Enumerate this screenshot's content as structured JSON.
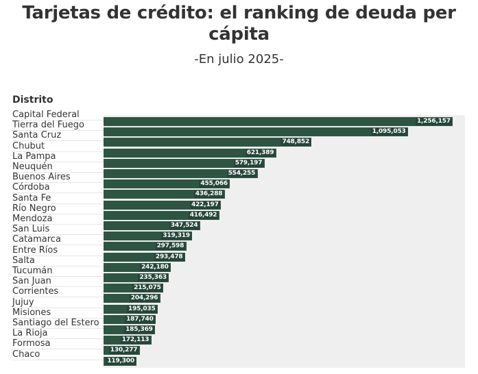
{
  "header": {
    "title": "Tarjetas de crédito: el ranking de deuda per cápita",
    "subtitle": "-En julio 2025-",
    "column_header": "Distrito"
  },
  "colors": {
    "bar": "#2d5542",
    "label_box": "#26463a",
    "panel": "#efefef"
  },
  "chart_data": {
    "type": "bar",
    "orientation": "horizontal",
    "title": "Tarjetas de crédito: el ranking de deuda per cápita",
    "subtitle": "-En julio 2025-",
    "xlabel": "",
    "ylabel": "Distrito",
    "xlim": [
      0,
      1256157
    ],
    "grid": false,
    "legend": "none",
    "categories": [
      "Capital Federal",
      "Tierra del Fuego",
      "Santa Cruz",
      "Chubut",
      "La Pampa",
      "Neuquén",
      "Buenos Aires",
      "Córdoba",
      "Santa Fe",
      "Río Negro",
      "Mendoza",
      "San Luis",
      "Catamarca",
      "Entre Ríos",
      "Salta",
      "Tucumán",
      "San Juan",
      "Corrientes",
      "Jujuy",
      "Misiones",
      "Santiago del Estero",
      "La Rioja",
      "Formosa",
      "Chaco"
    ],
    "values": [
      1256157,
      1095053,
      748852,
      621389,
      579197,
      554255,
      455066,
      436288,
      422197,
      416492,
      347524,
      319319,
      297598,
      293478,
      242180,
      235363,
      215075,
      204296,
      195035,
      187740,
      185369,
      172113,
      130277,
      119300
    ],
    "value_labels": [
      "1,256,157",
      "1,095,053",
      "748,852",
      "621,389",
      "579,197",
      "554,255",
      "455,066",
      "436,288",
      "422,197",
      "416,492",
      "347,524",
      "319,319",
      "297,598",
      "293,478",
      "242,180",
      "235,363",
      "215,075",
      "204,296",
      "195,035",
      "187,740",
      "185,369",
      "172,113",
      "130,277",
      "119,300"
    ]
  }
}
